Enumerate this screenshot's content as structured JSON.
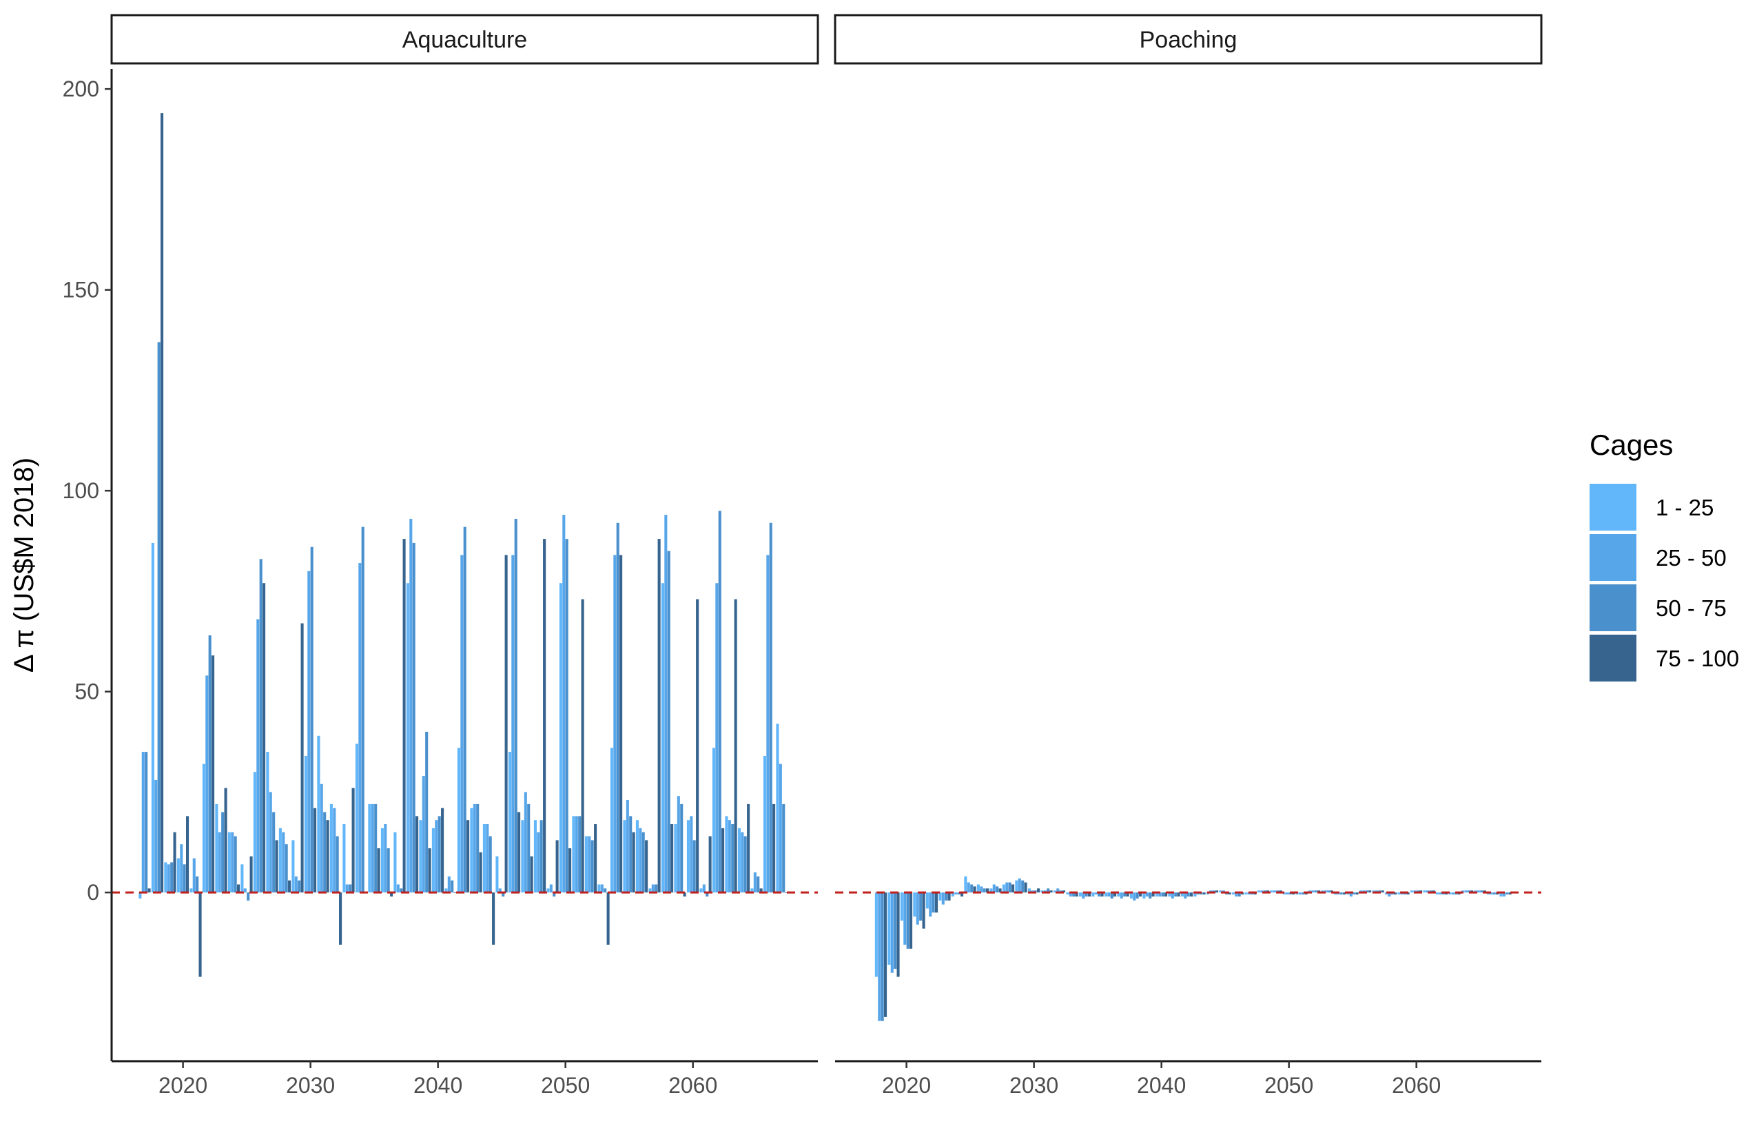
{
  "chart_data": {
    "type": "bar",
    "ylabel": "Δ π (US$M 2018)",
    "xlabel": "",
    "ylim": [
      -42,
      205
    ],
    "xlim": [
      2014.4,
      2069.8
    ],
    "y_ticks": [
      0,
      50,
      100,
      150,
      200
    ],
    "x_ticks": [
      2020,
      2030,
      2040,
      2050,
      2060
    ],
    "grid": false,
    "reference_line": {
      "y": 0,
      "style": "dashed",
      "color": "#c0201e"
    },
    "legend": {
      "title": "Cages",
      "placement": "right",
      "entries": [
        {
          "label": "1 - 25",
          "color": "#62b6fa"
        },
        {
          "label": "25 - 50",
          "color": "#58a6ea"
        },
        {
          "label": "50 - 75",
          "color": "#4a90cd"
        },
        {
          "label": "75 - 100",
          "color": "#36648e"
        }
      ]
    },
    "panels": [
      {
        "name": "Aquaculture",
        "series": [
          {
            "name": "1 - 25",
            "x": [
              2017,
              2018,
              2019,
              2020,
              2021,
              2022,
              2023,
              2024,
              2025,
              2026,
              2027,
              2028,
              2029,
              2030,
              2031,
              2032,
              2033,
              2034,
              2035,
              2036,
              2037,
              2038,
              2039,
              2040,
              2041,
              2042,
              2043,
              2044,
              2045,
              2046,
              2047,
              2048,
              2049,
              2050,
              2051,
              2052,
              2053,
              2054,
              2055,
              2056,
              2057,
              2058,
              2059,
              2060,
              2061,
              2062,
              2063,
              2064,
              2065,
              2066,
              2067
            ],
            "values": [
              -1.5,
              87,
              7.5,
              8.5,
              1,
              32,
              22,
              15,
              7,
              30,
              35,
              16,
              13,
              34,
              39,
              22,
              17,
              37,
              22,
              16,
              15,
              77,
              18,
              16,
              1,
              36,
              21,
              17,
              9,
              35,
              18,
              18,
              1,
              77,
              19,
              14,
              2,
              36,
              18,
              18,
              1,
              77,
              17,
              18,
              1,
              36,
              19,
              16,
              1,
              34,
              42
            ]
          },
          {
            "name": "25 - 50",
            "x": [
              2017,
              2018,
              2019,
              2020,
              2021,
              2022,
              2023,
              2024,
              2025,
              2026,
              2027,
              2028,
              2029,
              2030,
              2031,
              2032,
              2033,
              2034,
              2035,
              2036,
              2037,
              2038,
              2039,
              2040,
              2041,
              2042,
              2043,
              2044,
              2045,
              2046,
              2047,
              2048,
              2049,
              2050,
              2051,
              2052,
              2053,
              2054,
              2055,
              2056,
              2057,
              2058,
              2059,
              2060,
              2061,
              2062,
              2063,
              2064,
              2065,
              2066,
              2067
            ],
            "values": [
              35,
              28,
              7,
              12,
              8.5,
              54,
              15,
              15,
              1,
              68,
              25,
              15,
              4,
              80,
              27,
              21,
              2,
              82,
              22,
              17,
              2,
              93,
              29,
              18,
              4,
              84,
              22,
              17,
              1,
              84,
              25,
              15,
              2,
              94,
              19,
              14,
              2,
              84,
              23,
              16,
              2,
              94,
              24,
              19,
              2,
              77,
              18,
              15,
              5,
              84,
              32
            ]
          },
          {
            "name": "50 - 75",
            "x": [
              2017,
              2018,
              2019,
              2020,
              2021,
              2022,
              2023,
              2024,
              2025,
              2026,
              2027,
              2028,
              2029,
              2030,
              2031,
              2032,
              2033,
              2034,
              2035,
              2036,
              2037,
              2038,
              2039,
              2040,
              2041,
              2042,
              2043,
              2044,
              2045,
              2046,
              2047,
              2048,
              2049,
              2050,
              2051,
              2052,
              2053,
              2054,
              2055,
              2056,
              2057,
              2058,
              2059,
              2060,
              2061,
              2062,
              2063,
              2064,
              2065,
              2066,
              2067
            ],
            "values": [
              35,
              137,
              7.5,
              7,
              4,
              64,
              20,
              14,
              -2,
              83,
              20,
              12,
              3,
              86,
              20,
              14,
              2,
              91,
              22,
              11,
              1,
              87,
              40,
              19,
              3,
              91,
              22,
              14,
              -1,
              93,
              22,
              18,
              -1,
              88,
              19,
              13,
              1,
              92,
              19,
              15,
              2,
              85,
              22,
              13,
              -1,
              95,
              17,
              14,
              4,
              92,
              22
            ]
          },
          {
            "name": "75 - 100",
            "x": [
              2017,
              2018,
              2019,
              2020,
              2021,
              2022,
              2023,
              2024,
              2025,
              2026,
              2027,
              2028,
              2029,
              2030,
              2031,
              2032,
              2033,
              2034,
              2035,
              2036,
              2037,
              2038,
              2039,
              2040,
              2041,
              2042,
              2043,
              2044,
              2045,
              2046,
              2047,
              2048,
              2049,
              2050,
              2051,
              2052,
              2053,
              2054,
              2055,
              2056,
              2057,
              2058,
              2059,
              2060,
              2061,
              2062,
              2063,
              2064,
              2065,
              2066,
              2067
            ],
            "values": [
              1,
              194,
              15,
              19,
              -21,
              59,
              26,
              2,
              9,
              77,
              13,
              3,
              67,
              21,
              18,
              -13,
              26,
              0,
              11,
              -1,
              88,
              19,
              11,
              21,
              0,
              18,
              10,
              -13,
              84,
              20,
              9,
              88,
              13,
              11,
              73,
              17,
              -13,
              84,
              15,
              13,
              88,
              17,
              -1,
              73,
              14,
              16,
              73,
              22,
              1,
              22,
              0
            ]
          }
        ]
      },
      {
        "name": "Poaching",
        "series": [
          {
            "name": "1 - 25",
            "x": [
              2018,
              2019,
              2020,
              2021,
              2022,
              2023,
              2024,
              2025,
              2026,
              2027,
              2028,
              2029,
              2030,
              2031,
              2032,
              2033,
              2034,
              2035,
              2036,
              2037,
              2038,
              2039,
              2040,
              2041,
              2042,
              2043,
              2044,
              2045,
              2046,
              2047,
              2048,
              2049,
              2050,
              2051,
              2052,
              2053,
              2054,
              2055,
              2056,
              2057,
              2058,
              2059,
              2060,
              2061,
              2062,
              2063,
              2064,
              2065,
              2066,
              2067
            ],
            "values": [
              -21,
              -18,
              -7,
              -6,
              -4,
              -2,
              -1,
              4,
              2,
              1,
              2,
              3,
              1,
              0.5,
              0.5,
              -0.5,
              -1,
              -1,
              -1,
              -1,
              -1.5,
              -1.5,
              -1,
              -1,
              -1,
              -1,
              -0.5,
              0.5,
              -0.5,
              -0.5,
              0.5,
              0.5,
              -0.5,
              -0.5,
              0.5,
              0.5,
              -0.5,
              -0.5,
              0.5,
              0.5,
              -0.5,
              -0.5,
              0.5,
              0.5,
              -0.5,
              -0.5,
              0.5,
              0.5,
              -0.5,
              -1
            ]
          },
          {
            "name": "25 - 50",
            "x": [
              2018,
              2019,
              2020,
              2021,
              2022,
              2023,
              2024,
              2025,
              2026,
              2027,
              2028,
              2029,
              2030,
              2031,
              2032,
              2033,
              2034,
              2035,
              2036,
              2037,
              2038,
              2039,
              2040,
              2041,
              2042,
              2043,
              2044,
              2045,
              2046,
              2047,
              2048,
              2049,
              2050,
              2051,
              2052,
              2053,
              2054,
              2055,
              2056,
              2057,
              2058,
              2059,
              2060,
              2061,
              2062,
              2063,
              2064,
              2065,
              2066,
              2067
            ],
            "values": [
              -32,
              -20,
              -13,
              -8,
              -6,
              -3,
              -0.5,
              2.5,
              1.5,
              2,
              2.5,
              3.5,
              0.5,
              0.5,
              1,
              -1,
              -1.5,
              -0.5,
              -1,
              -1.5,
              -2,
              -1,
              -1,
              -1.5,
              -1.5,
              -0.5,
              0.5,
              0.5,
              -1,
              -0.5,
              0.5,
              0.5,
              -0.5,
              -0.5,
              0.5,
              0.5,
              -0.5,
              -1,
              0.5,
              0.5,
              -1,
              -0.5,
              0.5,
              0.5,
              -0.5,
              -0.5,
              0.5,
              0.5,
              -0.5,
              -1
            ]
          },
          {
            "name": "50 - 75",
            "x": [
              2018,
              2019,
              2020,
              2021,
              2022,
              2023,
              2024,
              2025,
              2026,
              2027,
              2028,
              2029,
              2030,
              2031,
              2032,
              2033,
              2034,
              2035,
              2036,
              2037,
              2038,
              2039,
              2040,
              2041,
              2042,
              2043,
              2044,
              2045,
              2046,
              2047,
              2048,
              2049,
              2050,
              2051,
              2052,
              2053,
              2054,
              2055,
              2056,
              2057,
              2058,
              2059,
              2060,
              2061,
              2062,
              2063,
              2064,
              2065,
              2066,
              2067
            ],
            "values": [
              -32,
              -19,
              -14,
              -7,
              -5,
              -2,
              -0.5,
              2,
              1,
              1.5,
              2.5,
              3,
              0.5,
              1,
              0.5,
              -1,
              -1,
              -1,
              -1.5,
              -1,
              -1.5,
              -1.5,
              -1,
              -1,
              -1,
              -0.5,
              0.5,
              -0.5,
              -1,
              -0.5,
              0.5,
              0.5,
              -0.5,
              -0.5,
              0.5,
              0.5,
              -0.5,
              -0.5,
              0.5,
              0.5,
              -0.5,
              -0.5,
              0.5,
              0.5,
              -0.5,
              -0.5,
              0.5,
              0.5,
              -0.5,
              -0.5
            ]
          },
          {
            "name": "75 - 100",
            "x": [
              2018,
              2019,
              2020,
              2021,
              2022,
              2023,
              2024,
              2025,
              2026,
              2027,
              2028,
              2029,
              2030,
              2031,
              2032,
              2033,
              2034,
              2035,
              2036,
              2037,
              2038,
              2039,
              2040,
              2041,
              2042,
              2043,
              2044,
              2045,
              2046,
              2047,
              2048,
              2049,
              2050,
              2051,
              2052,
              2053,
              2054,
              2055,
              2056,
              2057,
              2058,
              2059,
              2060,
              2061,
              2062,
              2063,
              2064,
              2065,
              2066,
              2067
            ],
            "values": [
              -31,
              -21,
              -14,
              -9,
              -5,
              -2,
              -1,
              1.5,
              1,
              1,
              2,
              2.5,
              1,
              0.5,
              0.5,
              -1,
              -1,
              -1,
              -1,
              -1,
              -1,
              -1,
              -1,
              -1,
              -1,
              -0.5,
              0.5,
              -0.5,
              -0.5,
              -0.5,
              0.5,
              0.5,
              -0.5,
              -0.5,
              0.5,
              0.5,
              -0.5,
              -0.5,
              0.5,
              0.5,
              -0.5,
              -0.5,
              0.5,
              0.5,
              -0.5,
              -0.5,
              0.5,
              0.5,
              -0.5,
              -0.5
            ]
          }
        ]
      }
    ]
  }
}
